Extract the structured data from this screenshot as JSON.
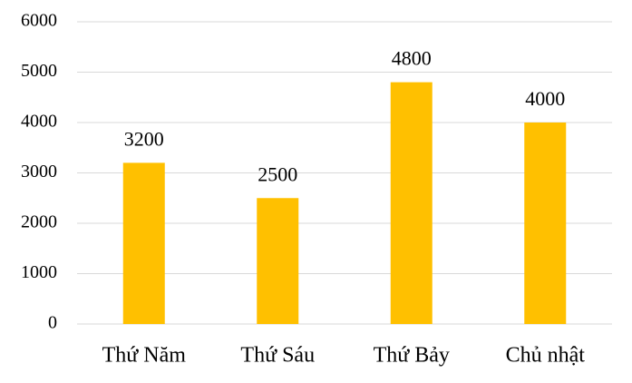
{
  "chart_data": {
    "type": "bar",
    "categories": [
      "Thứ Năm",
      "Thứ Sáu",
      "Thứ Bảy",
      "Chủ nhật"
    ],
    "values": [
      3200,
      2500,
      4800,
      4000
    ],
    "color": "#FFC000",
    "ylim": [
      0,
      6000
    ],
    "yticks": [
      0,
      1000,
      2000,
      3000,
      4000,
      5000,
      6000
    ],
    "grid": true
  }
}
